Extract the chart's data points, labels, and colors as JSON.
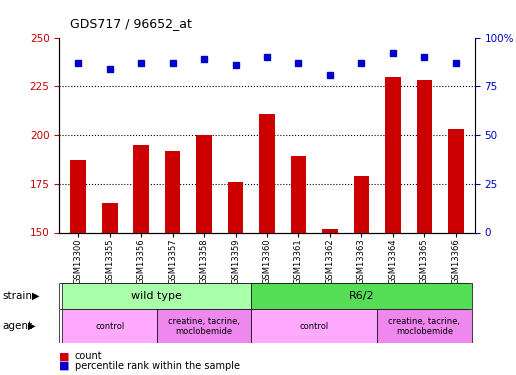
{
  "title": "GDS717 / 96652_at",
  "samples": [
    "GSM13300",
    "GSM13355",
    "GSM13356",
    "GSM13357",
    "GSM13358",
    "GSM13359",
    "GSM13360",
    "GSM13361",
    "GSM13362",
    "GSM13363",
    "GSM13364",
    "GSM13365",
    "GSM13366"
  ],
  "counts": [
    187,
    165,
    195,
    192,
    200,
    176,
    211,
    189,
    152,
    179,
    230,
    228,
    203
  ],
  "percentiles": [
    87,
    84,
    87,
    87,
    89,
    86,
    90,
    87,
    81,
    87,
    92,
    90,
    87
  ],
  "ylim_left": [
    150,
    250
  ],
  "ylim_right": [
    0,
    100
  ],
  "yticks_left": [
    150,
    175,
    200,
    225,
    250
  ],
  "yticks_right": [
    0,
    25,
    50,
    75,
    100
  ],
  "bar_color": "#cc0000",
  "dot_color": "#0000cc",
  "strain_groups": [
    {
      "label": "wild type",
      "start": 0,
      "end": 6,
      "color": "#aaffaa"
    },
    {
      "label": "R6/2",
      "start": 6,
      "end": 13,
      "color": "#55dd55"
    }
  ],
  "agent_groups": [
    {
      "label": "control",
      "start": 0,
      "end": 3,
      "color": "#ffaaff"
    },
    {
      "label": "creatine, tacrine,\nmoclobemide",
      "start": 3,
      "end": 6,
      "color": "#ee88ee"
    },
    {
      "label": "control",
      "start": 6,
      "end": 10,
      "color": "#ffaaff"
    },
    {
      "label": "creatine, tacrine,\nmoclobemide",
      "start": 10,
      "end": 13,
      "color": "#ee88ee"
    }
  ],
  "bar_width": 0.5,
  "bar_color_hex": "#cc0000",
  "dot_color_hex": "#0000cc",
  "tick_color_left": "#cc0000",
  "tick_color_right": "#0000cc",
  "background_color": "#ffffff",
  "strain_label_color": "#000000",
  "agent_label_color": "#000000"
}
